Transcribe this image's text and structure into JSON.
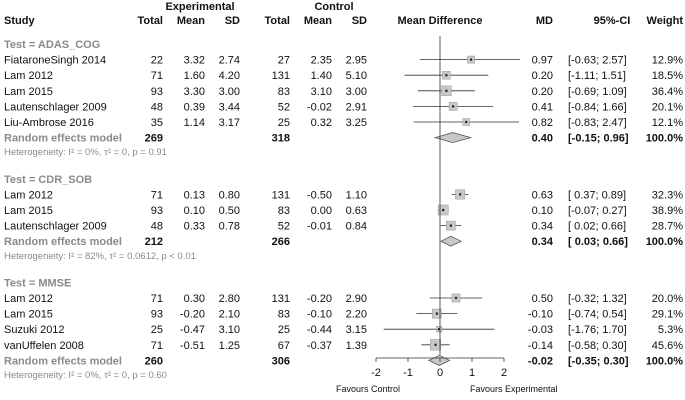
{
  "chart_data": {
    "type": "forest",
    "title": "",
    "header": {
      "study": "Study",
      "experimental": "Experimental",
      "control": "Control",
      "total": "Total",
      "mean": "Mean",
      "sd": "SD",
      "effect": "Mean Difference",
      "md": "MD",
      "ci": "95%-CI",
      "weight": "Weight"
    },
    "xlim": [
      -2,
      2
    ],
    "ticks": [
      "-2",
      "-1",
      "0",
      "1",
      "2"
    ],
    "tick_values": [
      -2,
      -1,
      0,
      1,
      2
    ],
    "favours_left": "Favours Control",
    "favours_right": "Favours Experimental",
    "groups": [
      {
        "label": "Test = ADAS_COG",
        "studies": [
          {
            "name": "FiataroneSingh 2014",
            "e_total": "22",
            "e_mean": "3.32",
            "e_sd": "2.74",
            "c_total": "27",
            "c_mean": "2.35",
            "c_sd": "2.95",
            "md_text": "0.97",
            "ci_text": "[-0.63; 2.57]",
            "weight_text": "12.9%",
            "md": 0.97,
            "lo": -0.63,
            "hi": 2.57,
            "weight": 12.9
          },
          {
            "name": "Lam 2012",
            "e_total": "71",
            "e_mean": "1.60",
            "e_sd": "4.20",
            "c_total": "131",
            "c_mean": "1.40",
            "c_sd": "5.10",
            "md_text": "0.20",
            "ci_text": "[-1.11; 1.51]",
            "weight_text": "18.5%",
            "md": 0.2,
            "lo": -1.11,
            "hi": 1.51,
            "weight": 18.5
          },
          {
            "name": "Lam 2015",
            "e_total": "93",
            "e_mean": "3.30",
            "e_sd": "3.00",
            "c_total": "83",
            "c_mean": "3.10",
            "c_sd": "3.00",
            "md_text": "0.20",
            "ci_text": "[-0.69; 1.09]",
            "weight_text": "36.4%",
            "md": 0.2,
            "lo": -0.69,
            "hi": 1.09,
            "weight": 36.4
          },
          {
            "name": "Lautenschlager 2009",
            "e_total": "48",
            "e_mean": "0.39",
            "e_sd": "3.44",
            "c_total": "52",
            "c_mean": "-0.02",
            "c_sd": "2.91",
            "md_text": "0.41",
            "ci_text": "[-0.84; 1.66]",
            "weight_text": "20.1%",
            "md": 0.41,
            "lo": -0.84,
            "hi": 1.66,
            "weight": 20.1
          },
          {
            "name": "Liu-Ambrose 2016",
            "e_total": "35",
            "e_mean": "1.14",
            "e_sd": "3.17",
            "c_total": "25",
            "c_mean": "0.32",
            "c_sd": "3.25",
            "md_text": "0.82",
            "ci_text": "[-0.83; 2.47]",
            "weight_text": "12.1%",
            "md": 0.82,
            "lo": -0.83,
            "hi": 2.47,
            "weight": 12.1
          }
        ],
        "pooled": {
          "name": "Random effects model",
          "e_total": "269",
          "c_total": "318",
          "md_text": "0.40",
          "ci_text": "[-0.15; 0.96]",
          "weight_text": "100.0%",
          "md": 0.4,
          "lo": -0.15,
          "hi": 0.96
        },
        "heterogeneity": "Heterogeneity: I² = 0%, τ² = 0, p = 0.91"
      },
      {
        "label": "Test = CDR_SOB",
        "studies": [
          {
            "name": "Lam 2012",
            "e_total": "71",
            "e_mean": "0.13",
            "e_sd": "0.80",
            "c_total": "131",
            "c_mean": "-0.50",
            "c_sd": "1.10",
            "md_text": "0.63",
            "ci_text": "[ 0.37; 0.89]",
            "weight_text": "32.3%",
            "md": 0.63,
            "lo": 0.37,
            "hi": 0.89,
            "weight": 32.3
          },
          {
            "name": "Lam 2015",
            "e_total": "93",
            "e_mean": "0.10",
            "e_sd": "0.50",
            "c_total": "83",
            "c_mean": "0.00",
            "c_sd": "0.63",
            "md_text": "0.10",
            "ci_text": "[-0.07; 0.27]",
            "weight_text": "38.9%",
            "md": 0.1,
            "lo": -0.07,
            "hi": 0.27,
            "weight": 38.9
          },
          {
            "name": "Lautenschlager 2009",
            "e_total": "48",
            "e_mean": "0.33",
            "e_sd": "0.78",
            "c_total": "52",
            "c_mean": "-0.01",
            "c_sd": "0.84",
            "md_text": "0.34",
            "ci_text": "[ 0.02; 0.66]",
            "weight_text": "28.7%",
            "md": 0.34,
            "lo": 0.02,
            "hi": 0.66,
            "weight": 28.7
          }
        ],
        "pooled": {
          "name": "Random effects model",
          "e_total": "212",
          "c_total": "266",
          "md_text": "0.34",
          "ci_text": "[ 0.03; 0.66]",
          "weight_text": "100.0%",
          "md": 0.34,
          "lo": 0.03,
          "hi": 0.66
        },
        "heterogeneity": "Heterogeneity: I² = 82%, τ² = 0.0612, p < 0.01"
      },
      {
        "label": "Test = MMSE",
        "studies": [
          {
            "name": "Lam 2012",
            "e_total": "71",
            "e_mean": "0.30",
            "e_sd": "2.80",
            "c_total": "131",
            "c_mean": "-0.20",
            "c_sd": "2.90",
            "md_text": "0.50",
            "ci_text": "[-0.32; 1.32]",
            "weight_text": "20.0%",
            "md": 0.5,
            "lo": -0.32,
            "hi": 1.32,
            "weight": 20.0
          },
          {
            "name": "Lam 2015",
            "e_total": "93",
            "e_mean": "-0.20",
            "e_sd": "2.10",
            "c_total": "83",
            "c_mean": "-0.10",
            "c_sd": "2.20",
            "md_text": "-0.10",
            "ci_text": "[-0.74; 0.54]",
            "weight_text": "29.1%",
            "md": -0.1,
            "lo": -0.74,
            "hi": 0.54,
            "weight": 29.1
          },
          {
            "name": "Suzuki 2012",
            "e_total": "25",
            "e_mean": "-0.47",
            "e_sd": "3.10",
            "c_total": "25",
            "c_mean": "-0.44",
            "c_sd": "3.15",
            "md_text": "-0.03",
            "ci_text": "[-1.76; 1.70]",
            "weight_text": "5.3%",
            "md": -0.03,
            "lo": -1.76,
            "hi": 1.7,
            "weight": 5.3
          },
          {
            "name": "vanUffelen 2008",
            "e_total": "71",
            "e_mean": "-0.51",
            "e_sd": "1.25",
            "c_total": "67",
            "c_mean": "-0.37",
            "c_sd": "1.39",
            "md_text": "-0.14",
            "ci_text": "[-0.58; 0.30]",
            "weight_text": "45.6%",
            "md": -0.14,
            "lo": -0.58,
            "hi": 0.3,
            "weight": 45.6
          }
        ],
        "pooled": {
          "name": "Random effects model",
          "e_total": "260",
          "c_total": "306",
          "md_text": "-0.02",
          "ci_text": "[-0.35; 0.30]",
          "weight_text": "100.0%",
          "md": -0.02,
          "lo": -0.35,
          "hi": 0.3
        },
        "heterogeneity": "Heterogeneity: I² = 0%, τ² = 0, p = 0.60"
      }
    ]
  }
}
